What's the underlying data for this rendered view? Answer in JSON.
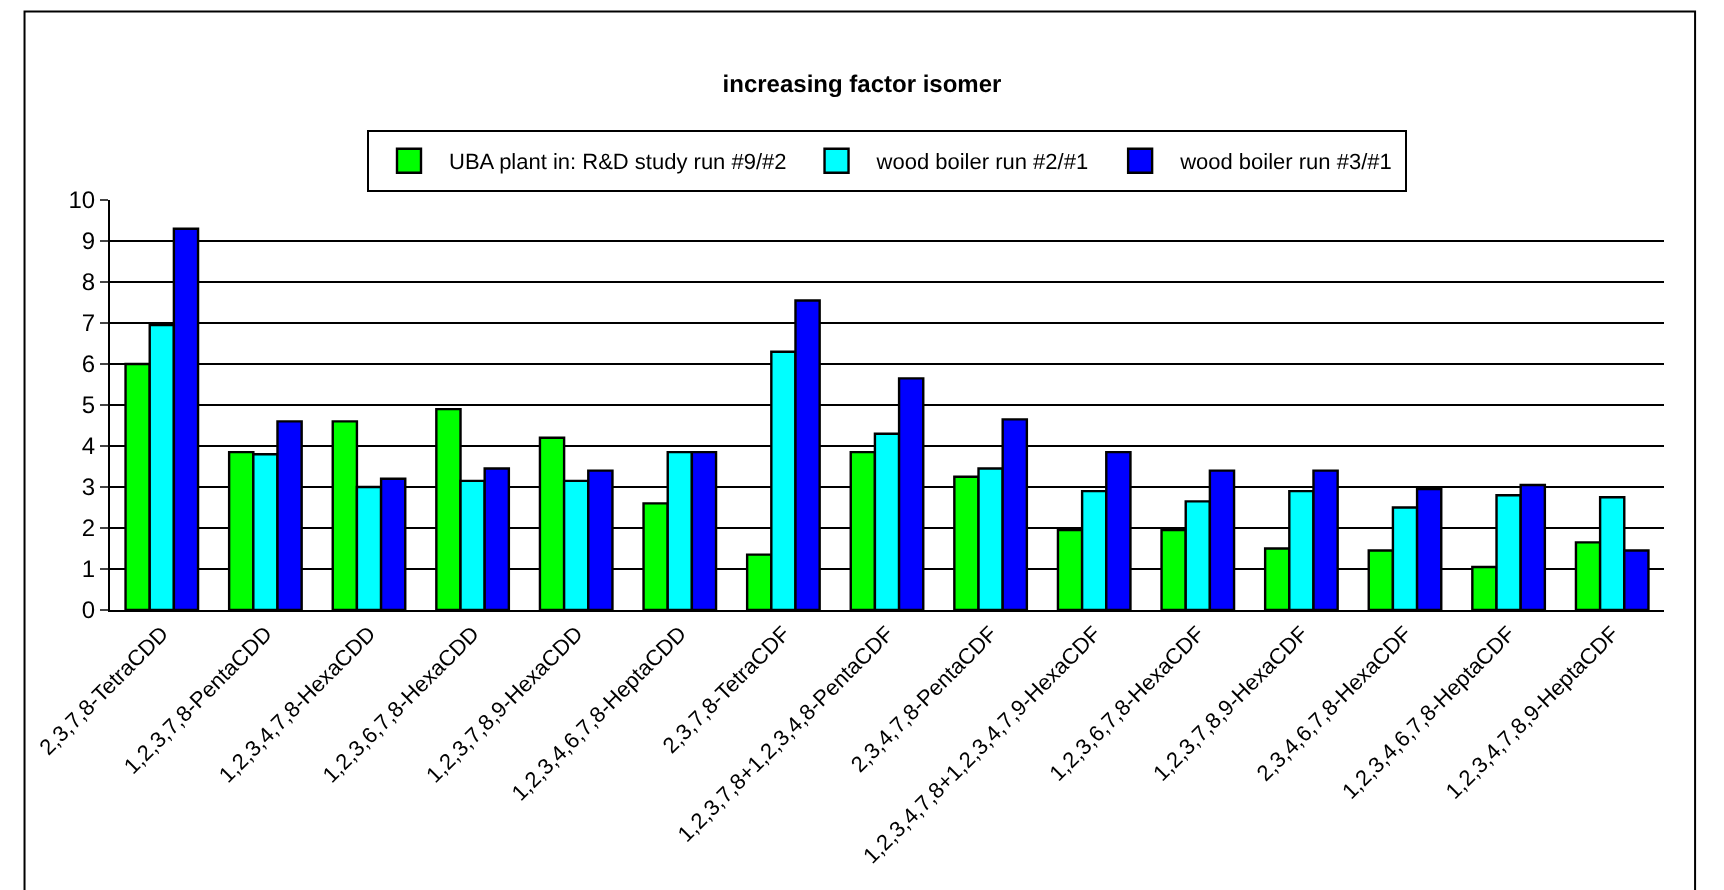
{
  "chart_data": {
    "type": "bar",
    "title": "increasing factor isomer",
    "categories": [
      "2,3,7,8-TetraCDD",
      "1,2,3,7,8-PentaCDD",
      "1,2,3,4,7,8-HexaCDD",
      "1,2,3,6,7,8-HexaCDD",
      "1,2,3,7,8,9-HexaCDD",
      "1,2,3,4,6,7,8-HeptaCDD",
      "2,3,7,8-TetraCDF",
      "1,2,3,7,8+1,2,3,4,8-PentaCDF",
      "2,3,4,7,8-PentaCDF",
      "1,2,3,4,7,8+1,2,3,4,7,9-HexaCDF",
      "1,2,3,6,7,8-HexaCDF",
      "1,2,3,7,8,9-HexaCDF",
      "2,3,4,6,7,8-HexaCDF",
      "1,2,3,4,6,7,8-HeptaCDF",
      "1,2,3,4,7,8,9-HeptaCDF"
    ],
    "series": [
      {
        "name": "UBA plant in: R&D study run #9/#2",
        "color": "#00ff00",
        "values": [
          6.0,
          3.85,
          4.6,
          4.9,
          4.2,
          2.6,
          1.35,
          3.85,
          3.25,
          1.95,
          1.95,
          1.5,
          1.45,
          1.05,
          1.65
        ]
      },
      {
        "name": "wood boiler run #2/#1",
        "color": "#00ffff",
        "values": [
          6.95,
          3.8,
          3.0,
          3.15,
          3.15,
          3.85,
          6.3,
          4.3,
          3.45,
          2.9,
          2.65,
          2.9,
          2.5,
          2.8,
          2.75
        ]
      },
      {
        "name": "wood boiler run #3/#1",
        "color": "#0000ff",
        "values": [
          9.3,
          4.6,
          3.2,
          3.45,
          3.4,
          3.85,
          7.55,
          5.65,
          4.65,
          3.85,
          3.4,
          3.4,
          2.95,
          3.05,
          1.45
        ]
      }
    ],
    "ylim": [
      0,
      10
    ],
    "yticks": [
      0,
      1,
      2,
      3,
      4,
      5,
      6,
      7,
      8,
      9,
      10
    ],
    "grid": "y",
    "legend": "top"
  }
}
